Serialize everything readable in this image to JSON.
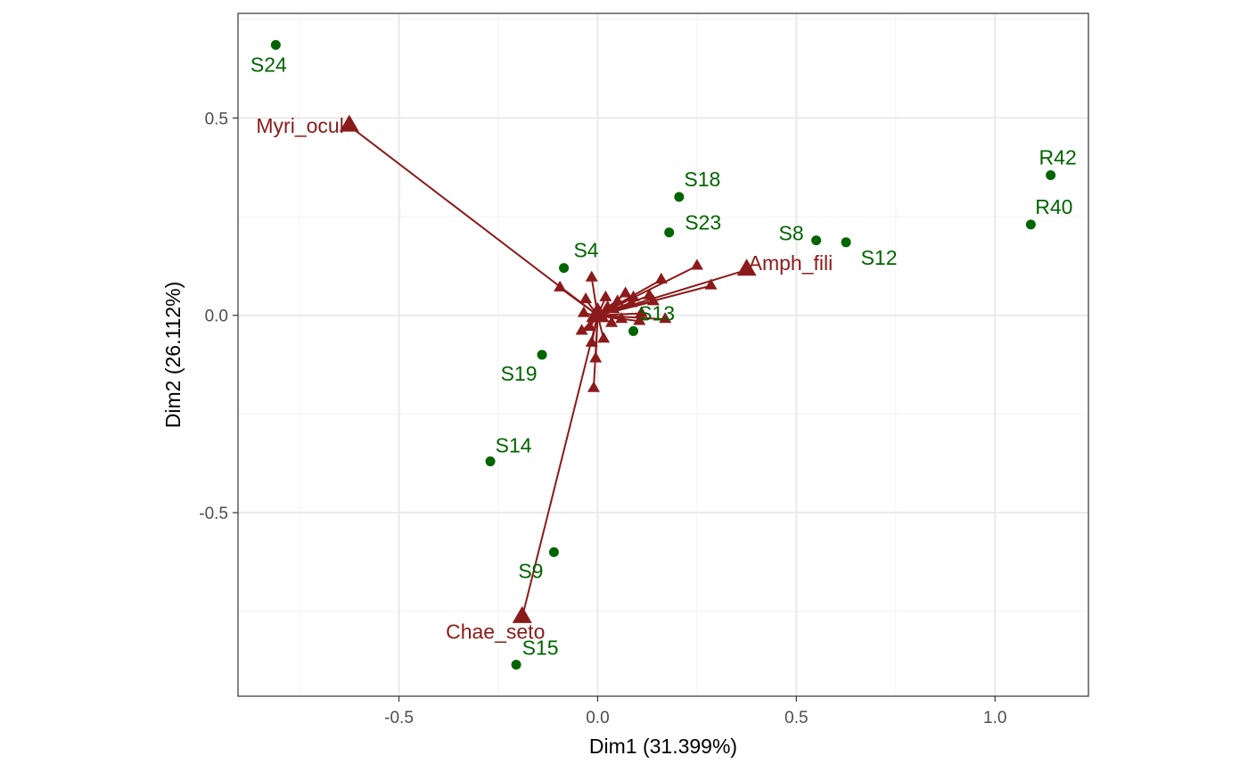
{
  "chart_data": {
    "type": "scatter",
    "title": "",
    "xlabel": "Dim1 (31.399%)",
    "ylabel": "Dim2 (26.112%)",
    "xlim": [
      -0.905,
      1.235
    ],
    "ylim": [
      -0.965,
      0.765
    ],
    "x_ticks": [
      -0.5,
      0.0,
      0.5,
      1.0
    ],
    "x_tick_labels": [
      "-0.5",
      "0.0",
      "0.5",
      "1.0"
    ],
    "y_ticks": [
      -0.5,
      0.0,
      0.5
    ],
    "y_tick_labels": [
      "-0.5",
      "0.0",
      "0.5"
    ],
    "grid": true,
    "theme": "bw",
    "colors": {
      "sites": "#006400",
      "species": "#8B1A1A",
      "grid_major": "#ebebeb",
      "grid_minor": "#f4f4f4",
      "panel_border": "#333333"
    },
    "sites": [
      {
        "name": "S24",
        "x": -0.81,
        "y": 0.685
      },
      {
        "name": "R42",
        "x": 1.14,
        "y": 0.355
      },
      {
        "name": "R40",
        "x": 1.09,
        "y": 0.23
      },
      {
        "name": "S18",
        "x": 0.205,
        "y": 0.3
      },
      {
        "name": "S23",
        "x": 0.18,
        "y": 0.21
      },
      {
        "name": "S8",
        "x": 0.55,
        "y": 0.19
      },
      {
        "name": "S12",
        "x": 0.625,
        "y": 0.185
      },
      {
        "name": "S4",
        "x": -0.085,
        "y": 0.12
      },
      {
        "name": "S13",
        "x": 0.09,
        "y": -0.04
      },
      {
        "name": "S19",
        "x": -0.14,
        "y": -0.1
      },
      {
        "name": "S14",
        "x": -0.27,
        "y": -0.37
      },
      {
        "name": "S9",
        "x": -0.11,
        "y": -0.6
      },
      {
        "name": "S15",
        "x": -0.205,
        "y": -0.885
      }
    ],
    "species_arrows_labeled": [
      {
        "name": "Myri_ocul",
        "x": -0.625,
        "y": 0.48
      },
      {
        "name": "Amph_fili",
        "x": 0.375,
        "y": 0.115
      },
      {
        "name": "Chae_seto",
        "x": -0.19,
        "y": -0.765
      }
    ],
    "species_arrows_other": [
      {
        "x": 0.25,
        "y": 0.125
      },
      {
        "x": 0.285,
        "y": 0.075
      },
      {
        "x": -0.01,
        "y": -0.185
      },
      {
        "x": 0.17,
        "y": -0.01
      },
      {
        "x": -0.095,
        "y": 0.07
      },
      {
        "x": -0.015,
        "y": 0.095
      },
      {
        "x": 0.16,
        "y": 0.09
      },
      {
        "x": 0.13,
        "y": 0.05
      },
      {
        "x": 0.07,
        "y": 0.055
      },
      {
        "x": 0.09,
        "y": 0.045
      },
      {
        "x": 0.14,
        "y": 0.035
      },
      {
        "x": 0.05,
        "y": 0.035
      },
      {
        "x": 0.02,
        "y": 0.045
      },
      {
        "x": -0.03,
        "y": 0.04
      },
      {
        "x": 0.11,
        "y": 0.005
      },
      {
        "x": 0.04,
        "y": 0.015
      },
      {
        "x": -0.02,
        "y": -0.03
      },
      {
        "x": -0.015,
        "y": -0.07
      },
      {
        "x": -0.005,
        "y": -0.11
      },
      {
        "x": 0.015,
        "y": -0.06
      },
      {
        "x": 0.035,
        "y": -0.02
      },
      {
        "x": 0.06,
        "y": -0.01
      },
      {
        "x": 0.105,
        "y": -0.015
      },
      {
        "x": -0.035,
        "y": 0.005
      },
      {
        "x": -0.04,
        "y": -0.04
      },
      {
        "x": 0.025,
        "y": 0.02
      },
      {
        "x": 0.085,
        "y": 0.03
      }
    ]
  }
}
